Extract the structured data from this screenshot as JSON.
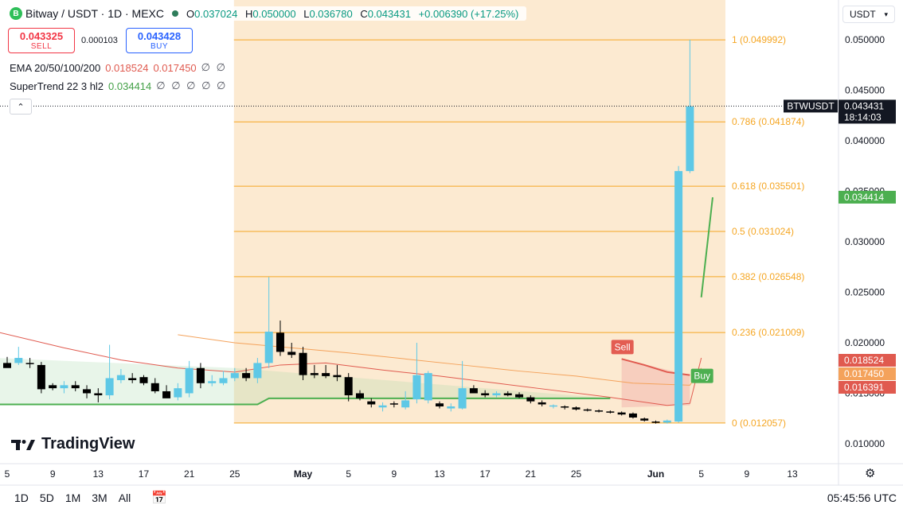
{
  "header": {
    "title": "Bitway / USDT · 1D · MEXC",
    "logo_letter": "B",
    "o_label": "O",
    "o": "0.037024",
    "h_label": "H",
    "h": "0.050000",
    "l_label": "L",
    "l": "0.036780",
    "c_label": "C",
    "c": "0.043431",
    "change": "+0.006390 (+17.25%)"
  },
  "trade": {
    "sell_price": "0.043325",
    "sell_label": "SELL",
    "spread": "0.000103",
    "buy_price": "0.043428",
    "buy_label": "BUY"
  },
  "indicators": {
    "ema_label": "EMA 20/50/100/200",
    "ema_v1": "0.018524",
    "ema_v2": "0.017450",
    "ema_rest": "∅ ∅",
    "st_label": "SuperTrend 22 3 hl2",
    "st_v1": "0.034414",
    "st_rest": "∅ ∅ ∅ ∅ ∅"
  },
  "currency": "USDT",
  "branding": "TradingView",
  "ranges": [
    "1D",
    "5D",
    "1M",
    "3M",
    "All"
  ],
  "clock": "05:45:56 UTC",
  "colors": {
    "up": "#5ec8e6",
    "down": "#000000",
    "fib_fill": "#fbe6c9",
    "fib_line": "#f5a623",
    "supertrend": "#4caf50",
    "ema_red": "#e05a4f",
    "ema_orange": "#f4a25b"
  },
  "chart_data": {
    "type": "candlestick",
    "ylim": [
      0.0075,
      0.053
    ],
    "x_ticks": [
      {
        "label": "5",
        "d": 0
      },
      {
        "label": "9",
        "d": 4
      },
      {
        "label": "13",
        "d": 8
      },
      {
        "label": "17",
        "d": 12
      },
      {
        "label": "21",
        "d": 16
      },
      {
        "label": "25",
        "d": 20
      },
      {
        "label": "May",
        "d": 26
      },
      {
        "label": "5",
        "d": 30
      },
      {
        "label": "9",
        "d": 34
      },
      {
        "label": "13",
        "d": 38
      },
      {
        "label": "17",
        "d": 42
      },
      {
        "label": "21",
        "d": 46
      },
      {
        "label": "25",
        "d": 50
      },
      {
        "label": "Jun",
        "d": 57
      },
      {
        "label": "5",
        "d": 61
      },
      {
        "label": "9",
        "d": 65
      },
      {
        "label": "13",
        "d": 69
      }
    ],
    "y_ticks": [
      "0.050000",
      "0.045000",
      "0.040000",
      "0.035000",
      "0.030000",
      "0.025000",
      "0.020000",
      "0.015000",
      "0.010000"
    ],
    "candles": [
      {
        "o": 0.018,
        "h": 0.0186,
        "l": 0.0176,
        "c": 0.0175
      },
      {
        "o": 0.018,
        "h": 0.0196,
        "l": 0.0178,
        "c": 0.0185
      },
      {
        "o": 0.018,
        "h": 0.0185,
        "l": 0.0175,
        "c": 0.0179
      },
      {
        "o": 0.0178,
        "h": 0.0181,
        "l": 0.015,
        "c": 0.0154
      },
      {
        "o": 0.0158,
        "h": 0.016,
        "l": 0.0153,
        "c": 0.0155
      },
      {
        "o": 0.0155,
        "h": 0.0162,
        "l": 0.015,
        "c": 0.0158
      },
      {
        "o": 0.0158,
        "h": 0.0162,
        "l": 0.0152,
        "c": 0.0155
      },
      {
        "o": 0.0154,
        "h": 0.0158,
        "l": 0.0145,
        "c": 0.015
      },
      {
        "o": 0.015,
        "h": 0.0155,
        "l": 0.0141,
        "c": 0.0148
      },
      {
        "o": 0.0148,
        "h": 0.0198,
        "l": 0.0144,
        "c": 0.0165
      },
      {
        "o": 0.0163,
        "h": 0.0174,
        "l": 0.016,
        "c": 0.0168
      },
      {
        "o": 0.0165,
        "h": 0.017,
        "l": 0.016,
        "c": 0.0163
      },
      {
        "o": 0.0166,
        "h": 0.0168,
        "l": 0.0158,
        "c": 0.016
      },
      {
        "o": 0.016,
        "h": 0.0165,
        "l": 0.015,
        "c": 0.0152
      },
      {
        "o": 0.0152,
        "h": 0.0158,
        "l": 0.0146,
        "c": 0.0145
      },
      {
        "o": 0.0146,
        "h": 0.016,
        "l": 0.0143,
        "c": 0.0155
      },
      {
        "o": 0.015,
        "h": 0.0182,
        "l": 0.0146,
        "c": 0.0175
      },
      {
        "o": 0.0175,
        "h": 0.018,
        "l": 0.0155,
        "c": 0.016
      },
      {
        "o": 0.016,
        "h": 0.0168,
        "l": 0.0157,
        "c": 0.0162
      },
      {
        "o": 0.016,
        "h": 0.0172,
        "l": 0.0158,
        "c": 0.0165
      },
      {
        "o": 0.0165,
        "h": 0.0175,
        "l": 0.0162,
        "c": 0.017
      },
      {
        "o": 0.017,
        "h": 0.0175,
        "l": 0.0162,
        "c": 0.0165
      },
      {
        "o": 0.0165,
        "h": 0.0185,
        "l": 0.016,
        "c": 0.018
      },
      {
        "o": 0.018,
        "h": 0.0265,
        "l": 0.0175,
        "c": 0.0211
      },
      {
        "o": 0.021,
        "h": 0.0222,
        "l": 0.0187,
        "c": 0.0191
      },
      {
        "o": 0.0191,
        "h": 0.02,
        "l": 0.0185,
        "c": 0.0188
      },
      {
        "o": 0.019,
        "h": 0.0196,
        "l": 0.0163,
        "c": 0.0168
      },
      {
        "o": 0.017,
        "h": 0.0178,
        "l": 0.0165,
        "c": 0.0168
      },
      {
        "o": 0.017,
        "h": 0.0178,
        "l": 0.0165,
        "c": 0.0167
      },
      {
        "o": 0.0168,
        "h": 0.0178,
        "l": 0.0162,
        "c": 0.0166
      },
      {
        "o": 0.0166,
        "h": 0.017,
        "l": 0.0142,
        "c": 0.0148
      },
      {
        "o": 0.015,
        "h": 0.0153,
        "l": 0.0143,
        "c": 0.0145
      },
      {
        "o": 0.0142,
        "h": 0.0145,
        "l": 0.0136,
        "c": 0.0139
      },
      {
        "o": 0.0136,
        "h": 0.0141,
        "l": 0.0132,
        "c": 0.0138
      },
      {
        "o": 0.014,
        "h": 0.0142,
        "l": 0.0136,
        "c": 0.0139
      },
      {
        "o": 0.0136,
        "h": 0.0152,
        "l": 0.0134,
        "c": 0.0143
      },
      {
        "o": 0.0144,
        "h": 0.02,
        "l": 0.014,
        "c": 0.0168
      },
      {
        "o": 0.0143,
        "h": 0.0172,
        "l": 0.014,
        "c": 0.017
      },
      {
        "o": 0.014,
        "h": 0.0142,
        "l": 0.0135,
        "c": 0.0137
      },
      {
        "o": 0.0135,
        "h": 0.014,
        "l": 0.0132,
        "c": 0.0137
      },
      {
        "o": 0.0135,
        "h": 0.0182,
        "l": 0.0134,
        "c": 0.0155
      },
      {
        "o": 0.0155,
        "h": 0.0158,
        "l": 0.015,
        "c": 0.015
      },
      {
        "o": 0.015,
        "h": 0.0153,
        "l": 0.0146,
        "c": 0.0148
      },
      {
        "o": 0.0148,
        "h": 0.0152,
        "l": 0.0146,
        "c": 0.015
      },
      {
        "o": 0.015,
        "h": 0.0152,
        "l": 0.0147,
        "c": 0.0148
      },
      {
        "o": 0.0149,
        "h": 0.0151,
        "l": 0.0145,
        "c": 0.0146
      },
      {
        "o": 0.0146,
        "h": 0.0148,
        "l": 0.014,
        "c": 0.0142
      },
      {
        "o": 0.0141,
        "h": 0.0143,
        "l": 0.0137,
        "c": 0.0139
      },
      {
        "o": 0.0137,
        "h": 0.0139,
        "l": 0.0135,
        "c": 0.0138
      },
      {
        "o": 0.0137,
        "h": 0.0138,
        "l": 0.0134,
        "c": 0.0136
      },
      {
        "o": 0.0136,
        "h": 0.0137,
        "l": 0.0133,
        "c": 0.0134
      },
      {
        "o": 0.0134,
        "h": 0.0135,
        "l": 0.0132,
        "c": 0.0133
      },
      {
        "o": 0.0133,
        "h": 0.0134,
        "l": 0.0131,
        "c": 0.0132
      },
      {
        "o": 0.0132,
        "h": 0.0133,
        "l": 0.013,
        "c": 0.0131
      },
      {
        "o": 0.0131,
        "h": 0.0132,
        "l": 0.0128,
        "c": 0.0129
      },
      {
        "o": 0.013,
        "h": 0.0131,
        "l": 0.0125,
        "c": 0.0126
      },
      {
        "o": 0.0125,
        "h": 0.0126,
        "l": 0.0122,
        "c": 0.0123
      },
      {
        "o": 0.0122,
        "h": 0.0123,
        "l": 0.012,
        "c": 0.0121
      },
      {
        "o": 0.0121,
        "h": 0.0124,
        "l": 0.012,
        "c": 0.0123
      },
      {
        "o": 0.0122,
        "h": 0.0375,
        "l": 0.0121,
        "c": 0.037
      },
      {
        "o": 0.037,
        "h": 0.05,
        "l": 0.0368,
        "c": 0.0434
      }
    ],
    "fib_levels": [
      {
        "ratio": 1,
        "value": 0.049992,
        "label": "1 (0.049992)"
      },
      {
        "ratio": 0.786,
        "value": 0.041874,
        "label": "0.786 (0.041874)"
      },
      {
        "ratio": 0.618,
        "value": 0.035501,
        "label": "0.618 (0.035501)"
      },
      {
        "ratio": 0.5,
        "value": 0.031024,
        "label": "0.5 (0.031024)"
      },
      {
        "ratio": 0.382,
        "value": 0.026548,
        "label": "0.382 (0.026548)"
      },
      {
        "ratio": 0.236,
        "value": 0.021009,
        "label": "0.236 (0.021009)"
      },
      {
        "ratio": 0,
        "value": 0.012057,
        "label": "0 (0.012057)"
      }
    ],
    "fib_range_days": [
      20,
      62
    ],
    "ema_red": [
      [
        -1,
        0.0211
      ],
      [
        5,
        0.0195
      ],
      [
        10,
        0.0183
      ],
      [
        15,
        0.0175
      ],
      [
        20,
        0.0171
      ],
      [
        24,
        0.0178
      ],
      [
        28,
        0.018
      ],
      [
        33,
        0.0173
      ],
      [
        38,
        0.0167
      ],
      [
        43,
        0.016
      ],
      [
        48,
        0.0153
      ],
      [
        53,
        0.0146
      ],
      [
        58,
        0.0138
      ],
      [
        60,
        0.014
      ],
      [
        61,
        0.0185
      ]
    ],
    "ema_orange": [
      [
        15,
        0.0208
      ],
      [
        20,
        0.02
      ],
      [
        25,
        0.0195
      ],
      [
        30,
        0.019
      ],
      [
        35,
        0.0184
      ],
      [
        40,
        0.0178
      ],
      [
        45,
        0.0172
      ],
      [
        50,
        0.0167
      ],
      [
        55,
        0.016
      ],
      [
        60,
        0.0158
      ],
      [
        61,
        0.0175
      ]
    ],
    "supertrend_green": [
      [
        -1,
        0.0139
      ],
      [
        22,
        0.0139
      ],
      [
        23,
        0.0145
      ],
      [
        53,
        0.0145
      ]
    ],
    "supertrend_red": [
      [
        54,
        0.0184
      ],
      [
        56,
        0.0178
      ],
      [
        58,
        0.0171
      ],
      [
        60,
        0.0168
      ]
    ],
    "supertrend_green2": [
      [
        61,
        0.0245
      ],
      [
        62,
        0.0344
      ]
    ],
    "signals": [
      {
        "label": "Sell",
        "d": 54,
        "y": 0.0184
      },
      {
        "label": "Buy",
        "d": 61,
        "y": 0.0168
      }
    ],
    "price_labels": [
      {
        "text": "BTWUSDT",
        "value": 0.043431,
        "kind": "symbol"
      },
      {
        "text": "0.043431",
        "sub": "18:14:03",
        "value": 0.043431,
        "kind": "last"
      },
      {
        "text": "0.034414",
        "value": 0.034414,
        "kind": "st"
      },
      {
        "text": "0.018524",
        "value": 0.018524,
        "kind": "ema1"
      },
      {
        "text": "0.017450",
        "value": 0.01745,
        "kind": "ema2"
      },
      {
        "text": "0.016391",
        "value": 0.016391,
        "kind": "ema3"
      }
    ]
  }
}
